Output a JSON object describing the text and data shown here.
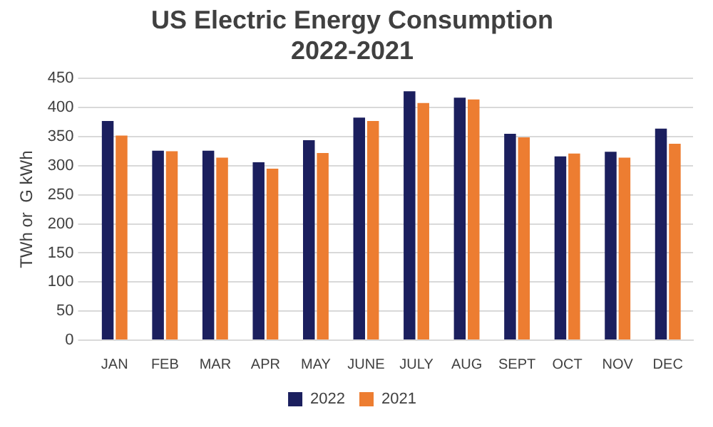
{
  "chart_data": {
    "type": "bar",
    "title": "US Electric Energy Consumption\n2022-2021",
    "ylabel": "TWh or  G kWh",
    "categories": [
      "JAN",
      "FEB",
      "MAR",
      "APR",
      "MAY",
      "JUNE",
      "JULY",
      "AUG",
      "SEPT",
      "OCT",
      "NOV",
      "DEC"
    ],
    "series": [
      {
        "name": "2022",
        "color": "#1b1f5e",
        "values": [
          377,
          326,
          326,
          306,
          344,
          383,
          428,
          417,
          355,
          316,
          324,
          364
        ]
      },
      {
        "name": "2021",
        "color": "#ed7d31",
        "values": [
          352,
          325,
          314,
          295,
          322,
          377,
          408,
          414,
          349,
          321,
          314,
          338
        ]
      }
    ],
    "ylim": [
      0,
      450
    ],
    "yticks": [
      0,
      50,
      100,
      150,
      200,
      250,
      300,
      350,
      400,
      450
    ],
    "grid": "y",
    "legend": "bottom"
  }
}
